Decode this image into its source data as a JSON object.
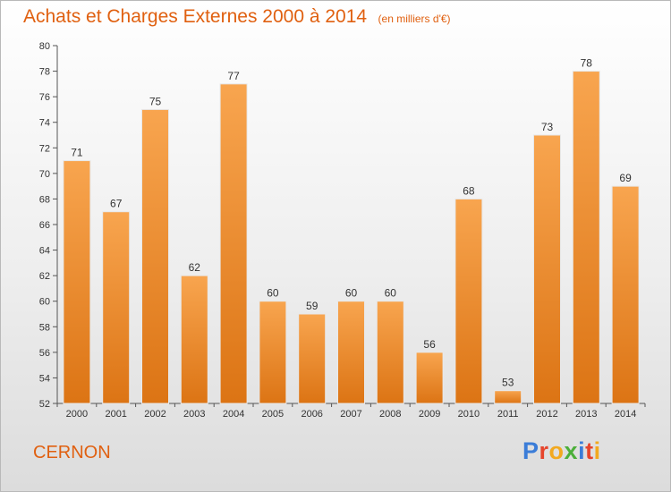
{
  "chart_data": {
    "type": "bar",
    "title": "Achats et Charges Externes 2000 à 2014",
    "subtitle": "(en milliers d'€)",
    "categories": [
      "2000",
      "2001",
      "2002",
      "2003",
      "2004",
      "2005",
      "2006",
      "2007",
      "2008",
      "2009",
      "2010",
      "2011",
      "2012",
      "2013",
      "2014"
    ],
    "values": [
      71,
      67,
      75,
      62,
      77,
      60,
      59,
      60,
      60,
      56,
      68,
      53,
      73,
      78,
      69
    ],
    "ylim": [
      52,
      80
    ],
    "yticks": [
      52,
      54,
      56,
      58,
      60,
      62,
      64,
      66,
      68,
      70,
      72,
      74,
      76,
      78,
      80
    ],
    "grid": false,
    "legend": "none",
    "bar_color": "#f28c2a",
    "title_color": "#e06010"
  },
  "footer": {
    "town": "CERNON",
    "logo_letters": [
      {
        "ch": "P",
        "color": "#3b7dd8"
      },
      {
        "ch": "r",
        "color": "#e6452c"
      },
      {
        "ch": "o",
        "color": "#f2a91f"
      },
      {
        "ch": "x",
        "color": "#4caf3a"
      },
      {
        "ch": "i",
        "color": "#3b7dd8"
      },
      {
        "ch": "t",
        "color": "#e6452c"
      },
      {
        "ch": "i",
        "color": "#f2a91f"
      }
    ]
  }
}
